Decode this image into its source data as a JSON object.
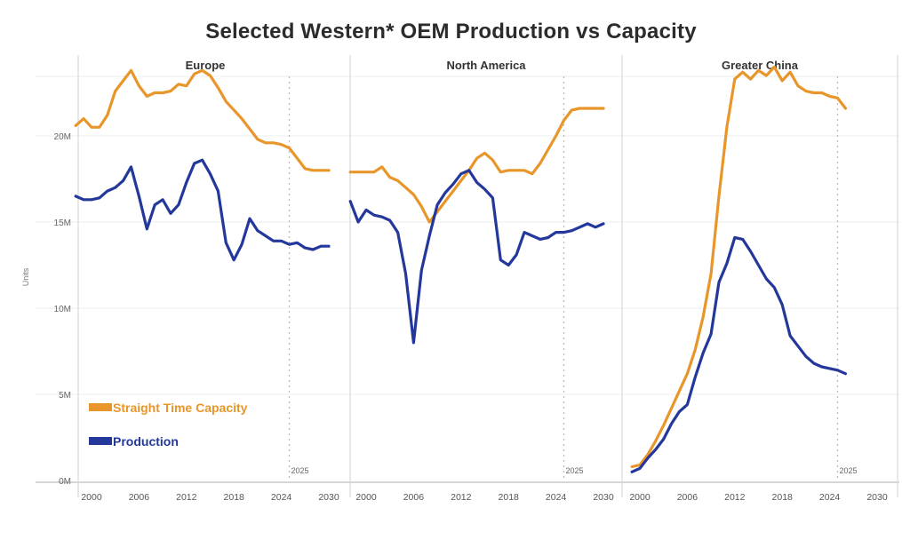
{
  "chart_data": {
    "type": "line",
    "title": "Selected Western* OEM Production vs Capacity",
    "ylabel": "Units",
    "ylim": [
      0,
      25
    ],
    "y_ticks": [
      {
        "value": 0,
        "label": "0M"
      },
      {
        "value": 5,
        "label": "5M"
      },
      {
        "value": 10,
        "label": "10M"
      },
      {
        "value": 15,
        "label": "15M"
      },
      {
        "value": 20,
        "label": "20M"
      }
    ],
    "x_ticks": [
      2000,
      2006,
      2012,
      2018,
      2024,
      2030
    ],
    "xlim": [
      1998,
      2031
    ],
    "grid": true,
    "legend_position": "bottom-left of first panel",
    "legend": [
      {
        "name": "Straight Time Capacity",
        "color": "#E8962A"
      },
      {
        "name": "Production",
        "color": "#23389A"
      }
    ],
    "forecast_marker": {
      "year": 2025,
      "label": "2025"
    },
    "x": [
      1998,
      1999,
      2000,
      2001,
      2002,
      2003,
      2004,
      2005,
      2006,
      2007,
      2008,
      2009,
      2010,
      2011,
      2012,
      2013,
      2014,
      2015,
      2016,
      2017,
      2018,
      2019,
      2020,
      2021,
      2022,
      2023,
      2024,
      2025,
      2026,
      2027,
      2028,
      2029,
      2030
    ],
    "panels": [
      {
        "name": "Europe",
        "series": [
          {
            "name": "Straight Time Capacity",
            "color": "#E8962A",
            "values": [
              20.6,
              21.0,
              20.5,
              20.5,
              21.2,
              22.6,
              23.2,
              23.8,
              22.9,
              22.3,
              22.5,
              22.5,
              22.6,
              23.0,
              22.9,
              23.6,
              23.8,
              23.5,
              22.8,
              22.0,
              21.5,
              21.0,
              20.4,
              19.8,
              19.6,
              19.6,
              19.5,
              19.3,
              18.7,
              18.1,
              18.0,
              18.0,
              18.0
            ]
          },
          {
            "name": "Production",
            "color": "#23389A",
            "values": [
              16.5,
              16.3,
              16.3,
              16.4,
              16.8,
              17.0,
              17.4,
              18.2,
              16.5,
              14.6,
              16.0,
              16.3,
              15.5,
              16.0,
              17.3,
              18.4,
              18.6,
              17.8,
              16.8,
              13.8,
              12.8,
              13.7,
              15.2,
              14.5,
              14.2,
              13.9,
              13.9,
              13.7,
              13.8,
              13.5,
              13.4,
              13.6,
              13.6
            ]
          }
        ]
      },
      {
        "name": "North America",
        "series": [
          {
            "name": "Straight Time Capacity",
            "color": "#E8962A",
            "values": [
              17.9,
              17.9,
              17.9,
              17.9,
              18.2,
              17.6,
              17.4,
              17.0,
              16.6,
              15.9,
              15.0,
              15.6,
              16.2,
              16.8,
              17.4,
              18.0,
              18.7,
              19.0,
              18.6,
              17.9,
              18.0,
              18.0,
              18.0,
              17.8,
              18.4,
              19.2,
              20.0,
              20.9,
              21.5,
              21.6,
              21.6,
              21.6,
              21.6
            ]
          },
          {
            "name": "Production",
            "color": "#23389A",
            "values": [
              16.2,
              15.0,
              15.7,
              15.4,
              15.3,
              15.1,
              14.4,
              12.0,
              8.0,
              12.2,
              14.2,
              16.0,
              16.7,
              17.2,
              17.8,
              18.0,
              17.3,
              16.9,
              16.4,
              12.8,
              12.5,
              13.1,
              14.4,
              14.2,
              14.0,
              14.1,
              14.4,
              14.4,
              14.5,
              14.7,
              14.9,
              14.7,
              14.9
            ]
          }
        ]
      },
      {
        "name": "Greater China",
        "series": [
          {
            "name": "Straight Time Capacity",
            "color": "#E8962A",
            "values": [
              0.8,
              0.9,
              1.5,
              2.3,
              3.2,
              4.2,
              5.2,
              6.2,
              7.6,
              9.5,
              12.0,
              16.5,
              20.5,
              23.3,
              23.7,
              23.3,
              23.8,
              23.5,
              24.0,
              23.2,
              23.7,
              22.9,
              22.6,
              22.5,
              22.5,
              22.3,
              22.2,
              21.6
            ]
          },
          {
            "name": "Production",
            "color": "#23389A",
            "values": [
              0.5,
              0.7,
              1.3,
              1.8,
              2.4,
              3.3,
              4.0,
              4.4,
              6.0,
              7.4,
              8.5,
              11.5,
              12.6,
              14.1,
              14.0,
              13.3,
              12.5,
              11.7,
              11.2,
              10.2,
              8.4,
              7.8,
              7.2,
              6.8,
              6.6,
              6.5,
              6.4,
              6.2
            ]
          }
        ],
        "x": [
          1999,
          2000,
          2001,
          2002,
          2003,
          2004,
          2005,
          2006,
          2007,
          2008,
          2009,
          2010,
          2011,
          2012,
          2013,
          2014,
          2015,
          2016,
          2017,
          2018,
          2019,
          2020,
          2021,
          2022,
          2023,
          2024,
          2025,
          2026
        ]
      }
    ]
  }
}
